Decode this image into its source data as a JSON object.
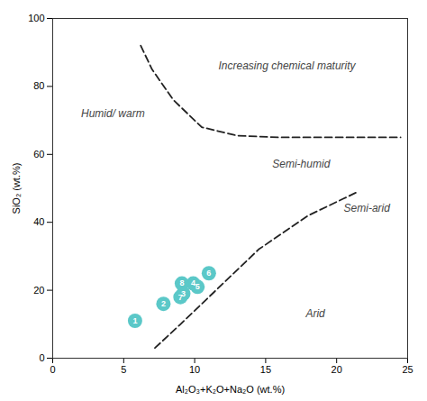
{
  "chart_data": {
    "type": "scatter",
    "xlabel": "Al₂O₃+K₂O+Na₂O (wt.%)",
    "ylabel": "SiO₂ (wt.%)",
    "xlim": [
      0,
      25
    ],
    "ylim": [
      0,
      100
    ],
    "xticks": [
      0,
      5,
      10,
      15,
      20,
      25
    ],
    "yticks": [
      0,
      20,
      40,
      60,
      80,
      100
    ],
    "series": [
      {
        "type": "line",
        "line_style": "dashed",
        "color": "#222222",
        "x": [
          6.2,
          7.0,
          8.5,
          10.5,
          13.0,
          16.0,
          19.0,
          22.0,
          24.5
        ],
        "values": [
          92,
          85,
          76,
          68,
          65.5,
          65.0,
          65.0,
          65.0,
          65.0
        ]
      },
      {
        "type": "line",
        "line_style": "dashed",
        "color": "#222222",
        "x": [
          7.2,
          9.0,
          11.5,
          14.5,
          18.0,
          20.5,
          21.5
        ],
        "values": [
          3,
          10,
          20,
          32,
          42,
          47,
          49
        ]
      },
      {
        "type": "scatter",
        "marker": "o",
        "color": "#5BC8C8",
        "x": [
          5.8,
          7.8,
          9.2,
          9.9,
          10.2,
          11.0,
          9.0,
          9.1
        ],
        "values": [
          11,
          16,
          19,
          22,
          21,
          25,
          18,
          22
        ],
        "labels": [
          1,
          2,
          3,
          4,
          5,
          6,
          7,
          8
        ]
      }
    ],
    "annotations": [
      {
        "text": "Humid/ warm",
        "x": 2.0,
        "y": 72,
        "color": "#444444"
      },
      {
        "text": "Increasing chemical maturity",
        "x": 16.5,
        "y": 86,
        "color": "#444444"
      },
      {
        "text": "Semi-humid",
        "x": 17.5,
        "y": 57,
        "color": "#444444"
      },
      {
        "text": "Semi-arid",
        "x": 20.5,
        "y": 44,
        "color": "#444444"
      },
      {
        "text": "Arid",
        "x": 18.5,
        "y": 13,
        "color": "#444444"
      }
    ]
  }
}
